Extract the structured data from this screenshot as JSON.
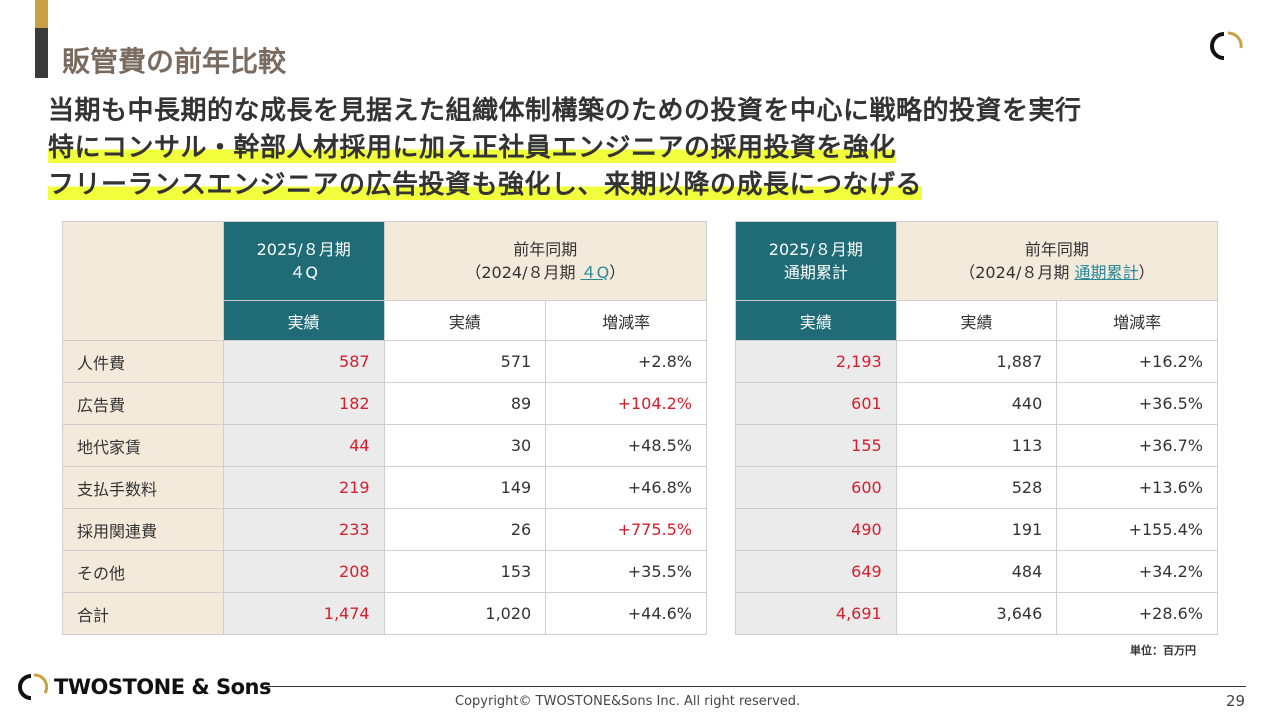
{
  "title": "販管費の前年比較",
  "lead": [
    "当期も中長期的な成長を見据えた組織体制構築のための投資を中心に戦略的投資を実行",
    "特にコンサル・幹部人材採用に加え正社員エンジニアの採用投資を強化",
    "フリーランスエンジニアの広告投資も強化し、来期以降の成長につなげる"
  ],
  "table_q": {
    "current_header": [
      "2025/８月期",
      "４Q"
    ],
    "prior_header": {
      "line1": "前年同期",
      "prefix": "（2024/８月期 ",
      "link": "４Q",
      "suffix": "）"
    },
    "sub_headers": [
      "実績",
      "実績",
      "増減率"
    ],
    "rows": [
      {
        "label": "人件費",
        "current": "587",
        "prior": "571",
        "change": "+2.8%",
        "change_red": false
      },
      {
        "label": "広告費",
        "current": "182",
        "prior": "89",
        "change": "+104.2%",
        "change_red": true
      },
      {
        "label": "地代家賃",
        "current": "44",
        "prior": "30",
        "change": "+48.5%",
        "change_red": false
      },
      {
        "label": "支払手数料",
        "current": "219",
        "prior": "149",
        "change": "+46.8%",
        "change_red": false
      },
      {
        "label": "採用関連費",
        "current": "233",
        "prior": "26",
        "change": "+775.5%",
        "change_red": true
      },
      {
        "label": "その他",
        "current": "208",
        "prior": "153",
        "change": "+35.5%",
        "change_red": false
      },
      {
        "label": "合計",
        "current": "1,474",
        "prior": "1,020",
        "change": "+44.6%",
        "change_red": false
      }
    ]
  },
  "table_fy": {
    "current_header": [
      "2025/８月期",
      "通期累計"
    ],
    "prior_header": {
      "line1": "前年同期",
      "prefix": "（2024/８月期 ",
      "link": "通期累計",
      "suffix": "）"
    },
    "sub_headers": [
      "実績",
      "実績",
      "増減率"
    ],
    "rows": [
      {
        "current": "2,193",
        "prior": "1,887",
        "change": "+16.2%"
      },
      {
        "current": "601",
        "prior": "440",
        "change": "+36.5%"
      },
      {
        "current": "155",
        "prior": "113",
        "change": "+36.7%"
      },
      {
        "current": "600",
        "prior": "528",
        "change": "+13.6%"
      },
      {
        "current": "490",
        "prior": "191",
        "change": "+155.4%"
      },
      {
        "current": "649",
        "prior": "484",
        "change": "+34.2%"
      },
      {
        "current": "4,691",
        "prior": "3,646",
        "change": "+28.6%"
      }
    ]
  },
  "unit": "単位：百万円",
  "footer": {
    "brand": "TWOSTONE & Sons",
    "copyright": "Copyright© TWOSTONE&Sons Inc. All right reserved.",
    "page": "29"
  },
  "colors": {
    "teal": "#1f6b76",
    "red": "#d3202f",
    "gold": "#c9a043",
    "highlight": "#f2ff3c"
  }
}
